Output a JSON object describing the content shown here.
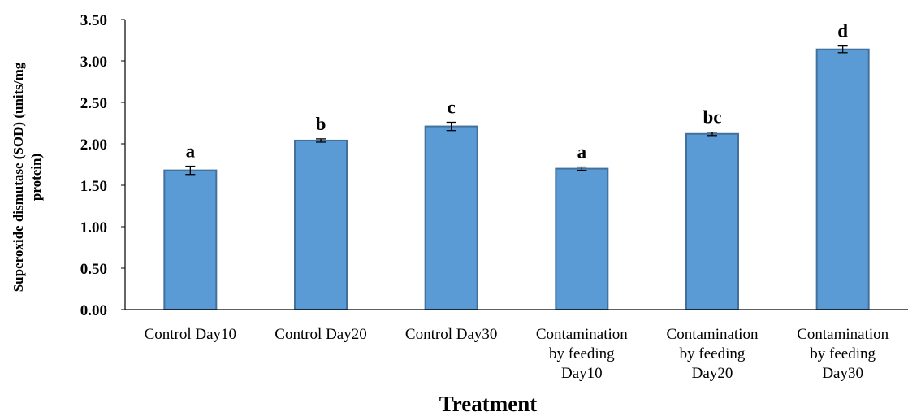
{
  "chart_data": {
    "type": "bar",
    "xlabel": "Treatment",
    "ylabel_lines": [
      "Superoxide dismutase (SOD) (units/mg",
      "protein)"
    ],
    "ylim": [
      0,
      3.5
    ],
    "yticks": [
      "0.00",
      "0.50",
      "1.00",
      "1.50",
      "2.00",
      "2.50",
      "3.00",
      "3.50"
    ],
    "grid": false,
    "legend": "none",
    "bar_color": "#5b9bd5",
    "bar_edge_color": "#41719c",
    "categories": [
      [
        "Control Day10"
      ],
      [
        "Control Day20"
      ],
      [
        "Control Day30"
      ],
      [
        "Contamination",
        "by feeding",
        "Day10"
      ],
      [
        "Contamination",
        "by feeding",
        "Day20"
      ],
      [
        "Contamination",
        "by feeding",
        "Day30"
      ]
    ],
    "values": [
      1.68,
      2.04,
      2.21,
      1.7,
      2.12,
      3.14
    ],
    "errors": [
      0.05,
      0.02,
      0.05,
      0.02,
      0.02,
      0.04
    ],
    "significance_labels": [
      "a",
      "b",
      "c",
      "a",
      "bc",
      "d"
    ]
  }
}
